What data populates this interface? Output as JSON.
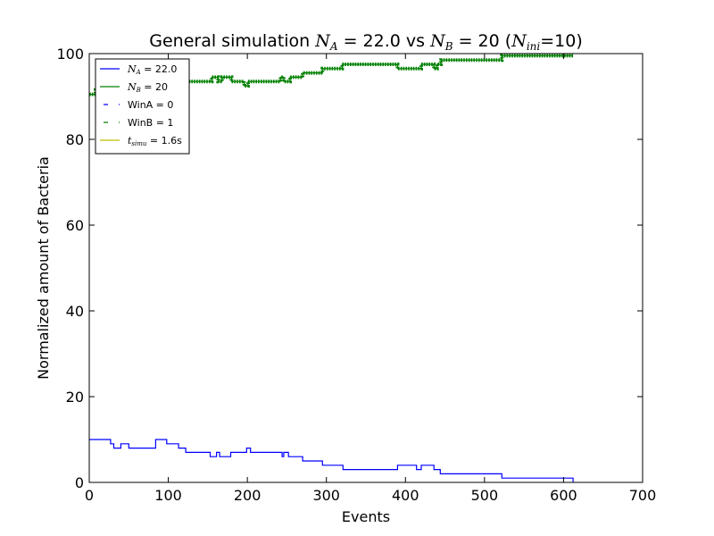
{
  "chart_data": {
    "type": "line",
    "title": "General simulation",
    "title_parts": {
      "prefix": "General simulation ",
      "na_sym": "N",
      "na_sub": "A",
      "na_val": " = 22.0 vs ",
      "nb_sym": "N",
      "nb_sub": "B",
      "nb_val": " = 20 (",
      "ni_sym": "N",
      "ni_sub": "ini",
      "ni_val": "=10)"
    },
    "xlabel": "Events",
    "ylabel": "Normalized amount of Bacteria",
    "xlim": [
      0,
      700
    ],
    "ylim": [
      0,
      100
    ],
    "xticks": [
      0,
      100,
      200,
      300,
      400,
      500,
      600,
      700
    ],
    "yticks": [
      0,
      20,
      40,
      60,
      80,
      100
    ],
    "grid": false,
    "legend_position": "top-left",
    "legend": [
      {
        "sym": "N",
        "sub": "A",
        "text": " = 22.0",
        "color": "#0000ff",
        "style": "solid"
      },
      {
        "sym": "N",
        "sub": "B",
        "text": " = 20",
        "color": "#008000",
        "style": "solid"
      },
      {
        "sym": "",
        "sub": "",
        "text": "WinA = 0",
        "color": "#0000ff",
        "style": "dashed"
      },
      {
        "sym": "",
        "sub": "",
        "text": "WinB = 1",
        "color": "#008000",
        "style": "dashed"
      },
      {
        "sym": "t",
        "sub": "simu",
        "text": " = 1.6s",
        "color": "#bfbf00",
        "style": "solid"
      }
    ],
    "series": [
      {
        "name": "N_A = 22.0",
        "color": "#0000ff",
        "points": [
          [
            0,
            10
          ],
          [
            27,
            10
          ],
          [
            27,
            9
          ],
          [
            31,
            9
          ],
          [
            31,
            8
          ],
          [
            40,
            8
          ],
          [
            40,
            9
          ],
          [
            50,
            9
          ],
          [
            50,
            8
          ],
          [
            84,
            8
          ],
          [
            84,
            10
          ],
          [
            98,
            10
          ],
          [
            98,
            9
          ],
          [
            113,
            9
          ],
          [
            113,
            8
          ],
          [
            122,
            8
          ],
          [
            122,
            7
          ],
          [
            153,
            7
          ],
          [
            153,
            6
          ],
          [
            161,
            6
          ],
          [
            161,
            7
          ],
          [
            165,
            7
          ],
          [
            165,
            6
          ],
          [
            179,
            6
          ],
          [
            179,
            7
          ],
          [
            199,
            7
          ],
          [
            199,
            8
          ],
          [
            204,
            8
          ],
          [
            204,
            7
          ],
          [
            244,
            7
          ],
          [
            244,
            6
          ],
          [
            246,
            6
          ],
          [
            246,
            7
          ],
          [
            252,
            7
          ],
          [
            252,
            6
          ],
          [
            270,
            6
          ],
          [
            270,
            5
          ],
          [
            295,
            5
          ],
          [
            295,
            4
          ],
          [
            321,
            4
          ],
          [
            321,
            3
          ],
          [
            390,
            3
          ],
          [
            390,
            4
          ],
          [
            414,
            4
          ],
          [
            414,
            3
          ],
          [
            420,
            3
          ],
          [
            420,
            4
          ],
          [
            436,
            4
          ],
          [
            436,
            3
          ],
          [
            444,
            3
          ],
          [
            444,
            2
          ],
          [
            522,
            2
          ],
          [
            522,
            1
          ],
          [
            612,
            1
          ],
          [
            612,
            0
          ]
        ]
      },
      {
        "name": "N_B = 20",
        "color": "#008000",
        "points": [
          [
            0,
            90.5
          ],
          [
            8,
            90.5
          ],
          [
            8,
            91.5
          ],
          [
            60,
            91.5
          ],
          [
            60,
            92.5
          ],
          [
            80,
            92.5
          ],
          [
            80,
            93.5
          ],
          [
            155,
            93.5
          ],
          [
            155,
            94.5
          ],
          [
            163,
            94.5
          ],
          [
            163,
            93.5
          ],
          [
            168,
            93.5
          ],
          [
            168,
            94.5
          ],
          [
            180,
            94.5
          ],
          [
            180,
            93.5
          ],
          [
            196,
            93.5
          ],
          [
            196,
            92.5
          ],
          [
            201,
            92.5
          ],
          [
            201,
            93.5
          ],
          [
            242,
            93.5
          ],
          [
            242,
            94.5
          ],
          [
            246,
            94.5
          ],
          [
            246,
            93.5
          ],
          [
            254,
            93.5
          ],
          [
            254,
            94.5
          ],
          [
            270,
            94.5
          ],
          [
            270,
            95.5
          ],
          [
            295,
            95.5
          ],
          [
            295,
            96.5
          ],
          [
            320,
            96.5
          ],
          [
            320,
            97.5
          ],
          [
            390,
            97.5
          ],
          [
            390,
            96.5
          ],
          [
            420,
            96.5
          ],
          [
            420,
            97.5
          ],
          [
            436,
            97.5
          ],
          [
            436,
            96.5
          ],
          [
            440,
            96.5
          ],
          [
            440,
            97.5
          ],
          [
            445,
            97.5
          ],
          [
            445,
            98.5
          ],
          [
            522,
            98.5
          ],
          [
            522,
            99.5
          ],
          [
            612,
            99.5
          ]
        ]
      }
    ]
  }
}
